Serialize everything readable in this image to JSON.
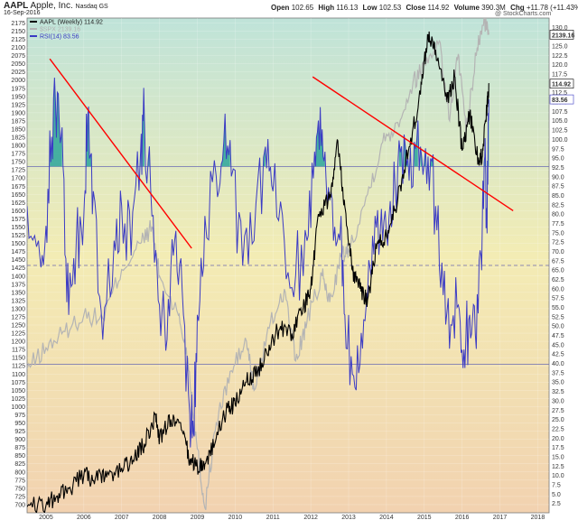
{
  "header": {
    "symbol": "AAPL",
    "company": "Apple, Inc.",
    "exchange": "Nasdaq GS",
    "date": "16-Sep-2016",
    "open_label": "Open",
    "open": "102.65",
    "high_label": "High",
    "high": "116.13",
    "low_label": "Low",
    "low": "102.53",
    "close_label": "Close",
    "close": "114.92",
    "volume_label": "Volume",
    "volume": "390.3M",
    "chg_label": "Chg",
    "chg": "+11.78 (+11.43%)",
    "arrow": "▲",
    "brand": "@ StockCharts.com"
  },
  "colors": {
    "aapl": "#000000",
    "spx": "#b4b4b4",
    "rsi": "#3b3bc4",
    "rsi_fill": "#2aa59a",
    "trendline": "#ff0000",
    "hline": "#6b6bb5",
    "bg_top": "#bfe3d9",
    "bg_mid": "#f3ecb4",
    "bg_bottom": "#f2d2b0"
  },
  "chart_data": {
    "type": "line",
    "legend": [
      {
        "key": "aapl",
        "text": "AAPL (Weekly) 114.92"
      },
      {
        "key": "spx",
        "text": "$SPX 2139.16"
      },
      {
        "key": "rsi",
        "text": "RSI(14) 83.56"
      }
    ],
    "x_axis": {
      "range": [
        2004.5,
        2018.3
      ],
      "ticks": [
        "2005",
        "2006",
        "2007",
        "2008",
        "2009",
        "2010",
        "2011",
        "2012",
        "2013",
        "2014",
        "2015",
        "2016",
        "2017",
        "2018"
      ]
    },
    "left_axis": {
      "series": "spx",
      "range": [
        675,
        2190
      ],
      "ticks": [
        "2175",
        "2150",
        "2125",
        "2100",
        "2075",
        "2050",
        "2025",
        "2000",
        "1975",
        "1950",
        "1925",
        "1900",
        "1875",
        "1850",
        "1825",
        "1800",
        "1775",
        "1750",
        "1725",
        "1700",
        "1675",
        "1650",
        "1625",
        "1600",
        "1575",
        "1550",
        "1525",
        "1500",
        "1475",
        "1450",
        "1425",
        "1400",
        "1375",
        "1350",
        "1325",
        "1300",
        "1275",
        "1250",
        "1225",
        "1200",
        "1175",
        "1150",
        "1125",
        "1100",
        "1075",
        "1050",
        "1025",
        "1000",
        "975",
        "950",
        "925",
        "900",
        "875",
        "850",
        "825",
        "800",
        "775",
        "750",
        "725",
        "700"
      ]
    },
    "right_axis": {
      "series": "aapl",
      "range": [
        0,
        132.5
      ],
      "ticks": [
        "130.0",
        "127.5",
        "125.0",
        "122.5",
        "120.0",
        "117.5",
        "115.0",
        "112.5",
        "110.0",
        "107.5",
        "105.0",
        "102.5",
        "100.0",
        "97.5",
        "95.0",
        "92.5",
        "90.0",
        "87.5",
        "85.0",
        "82.5",
        "80.0",
        "77.5",
        "75.0",
        "72.5",
        "70.0",
        "67.5",
        "65.0",
        "62.5",
        "60.0",
        "57.5",
        "55.0",
        "52.5",
        "50.0",
        "47.5",
        "45.0",
        "42.5",
        "40.0",
        "37.5",
        "35.0",
        "32.5",
        "30.0",
        "27.5",
        "25.0",
        "22.5",
        "20.0",
        "17.5",
        "15.0",
        "12.5",
        "10.0",
        "7.5",
        "5.0",
        "2.5"
      ]
    },
    "rsi_axis": {
      "range": [
        0,
        100
      ],
      "reference_levels": [
        70,
        30,
        50
      ]
    },
    "last_value_labels": [
      {
        "series": "spx",
        "axis": "right",
        "text": "2139.16"
      },
      {
        "series": "aapl",
        "axis": "right",
        "text": "114.92"
      },
      {
        "series": "rsi",
        "axis": "right",
        "text": "83.56"
      }
    ],
    "series": [
      {
        "key": "aapl",
        "name": "AAPL (Weekly) 114.92",
        "axis": "right",
        "points": [
          [
            2004.5,
            1.6
          ],
          [
            2005.0,
            2.0
          ],
          [
            2005.3,
            4.5
          ],
          [
            2005.6,
            6.5
          ],
          [
            2006.0,
            10.0
          ],
          [
            2006.3,
            9.0
          ],
          [
            2006.6,
            9.5
          ],
          [
            2007.0,
            12.0
          ],
          [
            2007.3,
            14.0
          ],
          [
            2007.6,
            18.5
          ],
          [
            2007.9,
            26.0
          ],
          [
            2008.0,
            20.0
          ],
          [
            2008.3,
            25.0
          ],
          [
            2008.6,
            22.0
          ],
          [
            2008.8,
            14.0
          ],
          [
            2009.0,
            12.5
          ],
          [
            2009.2,
            13.0
          ],
          [
            2009.5,
            20.0
          ],
          [
            2009.8,
            28.0
          ],
          [
            2010.0,
            29.0
          ],
          [
            2010.3,
            35.0
          ],
          [
            2010.6,
            38.0
          ],
          [
            2010.9,
            45.0
          ],
          [
            2011.2,
            50.0
          ],
          [
            2011.5,
            48.0
          ],
          [
            2011.8,
            55.0
          ],
          [
            2012.0,
            60.0
          ],
          [
            2012.2,
            80.0
          ],
          [
            2012.5,
            84.0
          ],
          [
            2012.7,
            100.0
          ],
          [
            2012.9,
            82.0
          ],
          [
            2013.1,
            65.0
          ],
          [
            2013.3,
            60.0
          ],
          [
            2013.5,
            57.0
          ],
          [
            2013.75,
            72.0
          ],
          [
            2014.0,
            74.0
          ],
          [
            2014.3,
            84.0
          ],
          [
            2014.6,
            98.0
          ],
          [
            2014.9,
            112.0
          ],
          [
            2015.1,
            128.0
          ],
          [
            2015.3,
            124.0
          ],
          [
            2015.6,
            110.0
          ],
          [
            2015.8,
            117.0
          ],
          [
            2016.0,
            97.0
          ],
          [
            2016.2,
            107.0
          ],
          [
            2016.45,
            93.0
          ],
          [
            2016.55,
            97.0
          ],
          [
            2016.65,
            108.0
          ],
          [
            2016.71,
            114.92
          ]
        ]
      },
      {
        "key": "spx",
        "name": "$SPX 2139.16",
        "axis": "left",
        "points": [
          [
            2004.5,
            1115
          ],
          [
            2005.0,
            1180
          ],
          [
            2005.5,
            1230
          ],
          [
            2006.0,
            1280
          ],
          [
            2006.5,
            1270
          ],
          [
            2007.0,
            1420
          ],
          [
            2007.5,
            1500
          ],
          [
            2007.8,
            1550
          ],
          [
            2008.0,
            1400
          ],
          [
            2008.5,
            1280
          ],
          [
            2008.75,
            1150
          ],
          [
            2009.0,
            870
          ],
          [
            2009.2,
            690
          ],
          [
            2009.5,
            950
          ],
          [
            2009.9,
            1110
          ],
          [
            2010.3,
            1200
          ],
          [
            2010.5,
            1050
          ],
          [
            2010.9,
            1240
          ],
          [
            2011.3,
            1360
          ],
          [
            2011.6,
            1140
          ],
          [
            2011.9,
            1260
          ],
          [
            2012.3,
            1400
          ],
          [
            2012.5,
            1320
          ],
          [
            2012.8,
            1460
          ],
          [
            2013.0,
            1480
          ],
          [
            2013.5,
            1650
          ],
          [
            2013.9,
            1810
          ],
          [
            2014.3,
            1870
          ],
          [
            2014.7,
            1990
          ],
          [
            2015.0,
            2050
          ],
          [
            2015.4,
            2120
          ],
          [
            2015.65,
            1880
          ],
          [
            2015.9,
            2080
          ],
          [
            2016.1,
            1840
          ],
          [
            2016.4,
            2100
          ],
          [
            2016.6,
            2180
          ],
          [
            2016.71,
            2139.16
          ]
        ]
      },
      {
        "key": "rsi",
        "name": "RSI(14) 83.56",
        "axis": "rsi",
        "points": [
          [
            2004.5,
            62
          ],
          [
            2004.8,
            55
          ],
          [
            2005.0,
            58
          ],
          [
            2005.15,
            76
          ],
          [
            2005.3,
            85
          ],
          [
            2005.45,
            70
          ],
          [
            2005.6,
            40
          ],
          [
            2005.8,
            55
          ],
          [
            2006.0,
            60
          ],
          [
            2006.1,
            80
          ],
          [
            2006.25,
            65
          ],
          [
            2006.5,
            35
          ],
          [
            2006.8,
            55
          ],
          [
            2007.0,
            62
          ],
          [
            2007.25,
            52
          ],
          [
            2007.5,
            73
          ],
          [
            2007.6,
            80
          ],
          [
            2007.8,
            60
          ],
          [
            2008.0,
            42
          ],
          [
            2008.2,
            35
          ],
          [
            2008.4,
            55
          ],
          [
            2008.6,
            45
          ],
          [
            2008.8,
            20
          ],
          [
            2008.9,
            16
          ],
          [
            2009.0,
            40
          ],
          [
            2009.2,
            60
          ],
          [
            2009.5,
            68
          ],
          [
            2009.7,
            75
          ],
          [
            2009.9,
            68
          ],
          [
            2010.2,
            50
          ],
          [
            2010.5,
            55
          ],
          [
            2010.8,
            74
          ],
          [
            2011.0,
            65
          ],
          [
            2011.3,
            55
          ],
          [
            2011.6,
            48
          ],
          [
            2011.9,
            55
          ],
          [
            2012.1,
            73
          ],
          [
            2012.25,
            82
          ],
          [
            2012.4,
            68
          ],
          [
            2012.6,
            55
          ],
          [
            2012.8,
            60
          ],
          [
            2012.9,
            40
          ],
          [
            2013.1,
            28
          ],
          [
            2013.3,
            30
          ],
          [
            2013.5,
            44
          ],
          [
            2013.7,
            60
          ],
          [
            2013.9,
            55
          ],
          [
            2014.1,
            63
          ],
          [
            2014.3,
            70
          ],
          [
            2014.5,
            74
          ],
          [
            2014.7,
            66
          ],
          [
            2014.9,
            74
          ],
          [
            2015.1,
            72
          ],
          [
            2015.3,
            62
          ],
          [
            2015.5,
            44
          ],
          [
            2015.7,
            38
          ],
          [
            2015.9,
            42
          ],
          [
            2016.05,
            33
          ],
          [
            2016.2,
            40
          ],
          [
            2016.35,
            36
          ],
          [
            2016.5,
            52
          ],
          [
            2016.6,
            72
          ],
          [
            2016.65,
            60
          ],
          [
            2016.71,
            83.56
          ]
        ]
      }
    ],
    "trendlines": [
      {
        "from": [
          2005.1,
          2065
        ],
        "to": [
          2008.85,
          1485
        ]
      },
      {
        "from": [
          2012.05,
          2010
        ],
        "to": [
          2017.35,
          1600
        ]
      }
    ]
  }
}
